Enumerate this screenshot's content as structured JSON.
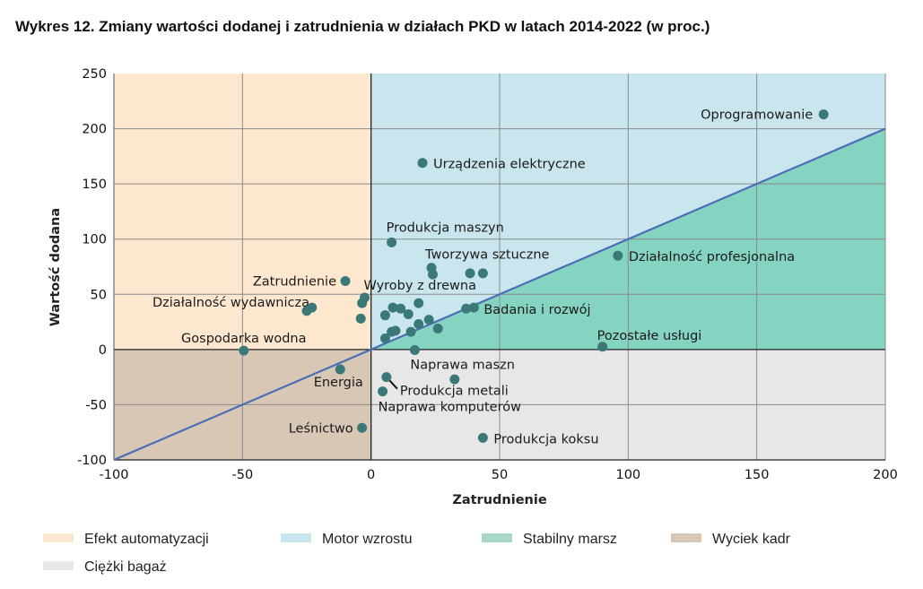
{
  "chart_data": {
    "type": "scatter",
    "title": "Wykres 12.  Zmiany wartości dodanej i zatrudnienia w działach PKD w latach 2014-2022 (w proc.)",
    "xlabel": "Zatrudnienie",
    "ylabel": "Wartość dodana",
    "xlim": [
      -100,
      200
    ],
    "ylim": [
      -100,
      250
    ],
    "xticks": [
      -100,
      -50,
      0,
      50,
      100,
      150,
      200
    ],
    "yticks": [
      -100,
      -50,
      0,
      50,
      100,
      150,
      200,
      250
    ],
    "grid": true,
    "reference_line": {
      "type": "y=x"
    },
    "colors": {
      "efekt": "#fde8cf",
      "motor": "#c9e6ee",
      "stabilny": "#85d3c1",
      "wyciek": "#d8c7b5",
      "ciezki": "#e7e7e7",
      "point": "#3b7878",
      "line": "#4b6eb6"
    },
    "legend": [
      {
        "label": "Efekt automatyzacji",
        "color": "#fde8cf"
      },
      {
        "label": "Motor wzrostu",
        "color": "#c9e6ee"
      },
      {
        "label": "Stabilny marsz",
        "color": "#a9d7c7"
      },
      {
        "label": "Wyciek kadr",
        "color": "#d8c7b5"
      },
      {
        "label": "Ciężki bagaż",
        "color": "#e7e7e7"
      }
    ],
    "legend_position": "bottom",
    "points": [
      {
        "x": 176,
        "y": 213,
        "label": "Oprogramowanie"
      },
      {
        "x": 20,
        "y": 169,
        "label": "Urządzenia elektryczne"
      },
      {
        "x": 8,
        "y": 97,
        "label": "Produkcja maszyn"
      },
      {
        "x": 23.5,
        "y": 74,
        "label": "Tworzywa sztuczne"
      },
      {
        "x": 24,
        "y": 68
      },
      {
        "x": 38.5,
        "y": 69
      },
      {
        "x": 43.5,
        "y": 69
      },
      {
        "x": 96,
        "y": 85,
        "label": "Działalność profesjonalna"
      },
      {
        "x": -10,
        "y": 62,
        "label": "Zatrudnienie"
      },
      {
        "x": -2.5,
        "y": 47,
        "label": "Wyroby z drewna"
      },
      {
        "x": -3.5,
        "y": 42
      },
      {
        "x": -25,
        "y": 35,
        "label": "Działalność wydawnicza"
      },
      {
        "x": -23,
        "y": 38
      },
      {
        "x": -4,
        "y": 28
      },
      {
        "x": 5.5,
        "y": 31
      },
      {
        "x": 8.5,
        "y": 38
      },
      {
        "x": 11.5,
        "y": 37
      },
      {
        "x": 14.5,
        "y": 32
      },
      {
        "x": 18.5,
        "y": 42
      },
      {
        "x": 22.5,
        "y": 27
      },
      {
        "x": 26,
        "y": 19
      },
      {
        "x": 18.5,
        "y": 23
      },
      {
        "x": 15.5,
        "y": 16
      },
      {
        "x": 8,
        "y": 16
      },
      {
        "x": 9.5,
        "y": 17
      },
      {
        "x": 5.5,
        "y": 10
      },
      {
        "x": 37,
        "y": 37
      },
      {
        "x": 40,
        "y": 38,
        "label": "Badania i rozwój"
      },
      {
        "x": 90,
        "y": 2.5,
        "label": "Pozostałe usługi"
      },
      {
        "x": 17,
        "y": -0.5,
        "label": "Naprawa maszn"
      },
      {
        "x": -49.5,
        "y": -1,
        "label": "Gospodarka wodna"
      },
      {
        "x": -12,
        "y": -18,
        "label": "Energia"
      },
      {
        "x": 6,
        "y": -25,
        "label": "Produkcja metali"
      },
      {
        "x": 32.5,
        "y": -27
      },
      {
        "x": 4.5,
        "y": -38,
        "label": "Naprawa komputerów"
      },
      {
        "x": -3.5,
        "y": -71,
        "label": "Leśnictwo"
      },
      {
        "x": 43.5,
        "y": -80,
        "label": "Produkcja koksu"
      }
    ]
  }
}
